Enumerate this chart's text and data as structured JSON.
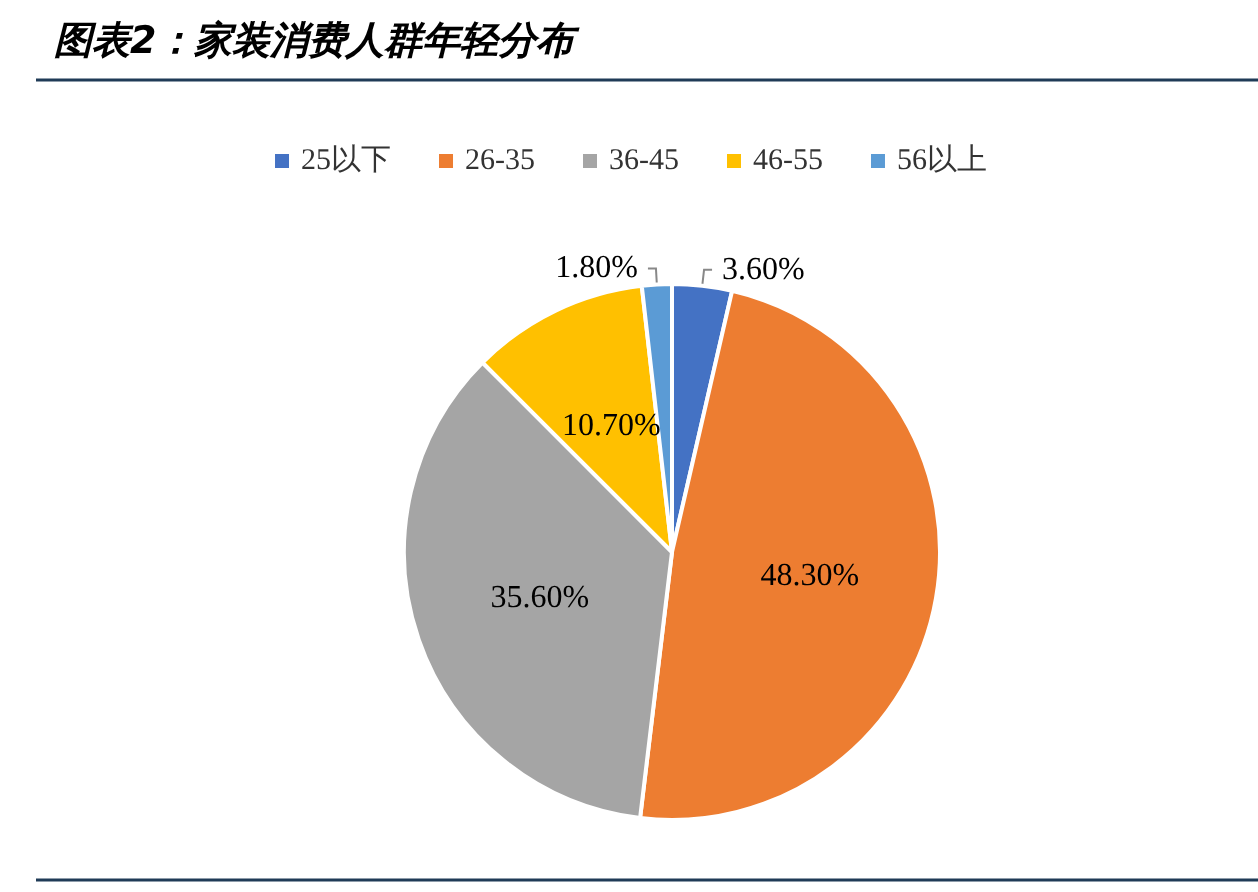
{
  "chart_data": {
    "type": "pie",
    "title": "图表2：家装消费人群年轻分布",
    "categories": [
      "25以下",
      "26-35",
      "36-45",
      "46-55",
      "56以上"
    ],
    "values": [
      3.6,
      48.3,
      35.6,
      10.7,
      1.8
    ],
    "value_labels": [
      "3.60%",
      "48.30%",
      "35.60%",
      "10.70%",
      "1.80%"
    ],
    "colors": [
      "#4472c4",
      "#ed7d31",
      "#a5a5a5",
      "#ffc000",
      "#5b9bd5"
    ],
    "legend": "top"
  }
}
